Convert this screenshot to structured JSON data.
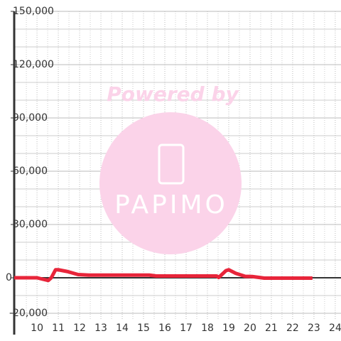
{
  "chart_data": {
    "type": "line",
    "x": [
      8.93,
      10,
      10.27,
      10.53,
      10.67,
      10.87,
      11,
      11.43,
      11.93,
      12.43,
      15.27,
      15.6,
      18.27,
      18.43,
      18.53,
      18.87,
      19,
      19.33,
      19.67,
      19.77,
      20.1,
      20.67,
      20.93,
      22.93
    ],
    "series": [
      {
        "name": "line",
        "color": "#e8253a",
        "values": [
          0,
          0,
          -800,
          -1500,
          0,
          4500,
          4500,
          3500,
          1800,
          1500,
          1500,
          1000,
          1000,
          1000,
          200,
          4000,
          4500,
          2500,
          1200,
          800,
          700,
          -200,
          -200,
          -200
        ]
      }
    ],
    "xlim": [
      8.93,
      24.27
    ],
    "xticks": [
      10,
      11,
      12,
      13,
      14,
      15,
      16,
      17,
      18,
      19,
      20,
      21,
      22,
      23,
      24
    ],
    "x_minor_ticks": [
      9.5,
      10.5,
      11.5,
      12.5,
      13.5,
      14.5,
      15.5,
      16.5,
      17.5,
      18.5,
      19.5,
      20.5,
      21.5,
      22.5,
      23.5
    ],
    "ylim": [
      -20000,
      150000
    ],
    "yticks": [
      {
        "value": -20000,
        "label": "-20,000"
      },
      0,
      {
        "value": 30000,
        "label": "30,000"
      },
      {
        "value": 60000,
        "label": "60,000"
      },
      {
        "value": 90000,
        "label": "90,000"
      },
      {
        "value": 120000,
        "label": "120,000"
      },
      {
        "value": 150000,
        "label": "150,000"
      }
    ],
    "y_minor_ticks": [
      -10000,
      10000,
      20000,
      40000,
      50000,
      70000,
      80000,
      100000,
      110000,
      130000,
      140000
    ],
    "grid": true,
    "watermark": {
      "line1": "Powered by",
      "line2": "PAPIMO"
    }
  }
}
